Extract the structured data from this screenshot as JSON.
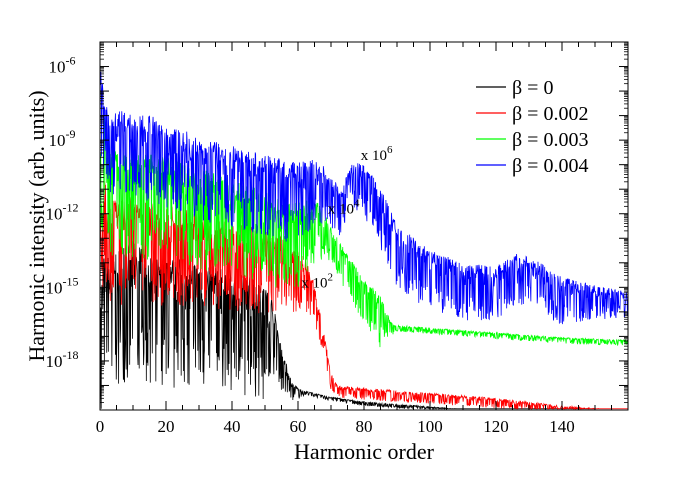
{
  "chart_data": {
    "type": "line",
    "xlabel": "Harmonic order",
    "ylabel": "Harmonic intensity (arb. units)",
    "xlim": [
      0,
      160
    ],
    "ylim": [
      1e-20,
      1e-05
    ],
    "yscale": "log",
    "xticks": [
      0,
      20,
      40,
      60,
      80,
      100,
      120,
      140
    ],
    "yticks": [
      {
        "value": 1e-18,
        "base": "10",
        "exp": "-18"
      },
      {
        "value": 1e-15,
        "base": "10",
        "exp": "-15"
      },
      {
        "value": 1e-12,
        "base": "10",
        "exp": "-12"
      },
      {
        "value": 1e-09,
        "base": "10",
        "exp": "-9"
      },
      {
        "value": 1e-06,
        "base": "10",
        "exp": "-6"
      }
    ],
    "legend_position": "top-right",
    "series": [
      {
        "name": "β = 0",
        "color": "#000000",
        "baseline": [
          [
            0,
            -17.0
          ],
          [
            1,
            -14.8
          ],
          [
            3,
            -14.9
          ],
          [
            6,
            -14.6
          ],
          [
            10,
            -14.3
          ],
          [
            15,
            -14.7
          ],
          [
            20,
            -14.9
          ],
          [
            30,
            -15.1
          ],
          [
            40,
            -15.4
          ],
          [
            48,
            -15.6
          ],
          [
            52,
            -16.2
          ],
          [
            54,
            -17.2
          ],
          [
            56,
            -18.2
          ],
          [
            58,
            -19.0
          ],
          [
            60,
            -19.2
          ],
          [
            70,
            -19.5
          ],
          [
            80,
            -19.7
          ],
          [
            100,
            -19.9
          ],
          [
            120,
            -20.1
          ],
          [
            150,
            -20.4
          ]
        ],
        "noise": [
          [
            0,
            3.5
          ],
          [
            50,
            3.0
          ],
          [
            54,
            1.5
          ],
          [
            58,
            0.5
          ],
          [
            62,
            0.1
          ],
          [
            150,
            0.1
          ]
        ]
      },
      {
        "name": "β = 0.002",
        "color": "#ff0000",
        "baseline": [
          [
            0,
            -13.2
          ],
          [
            1,
            -11.4
          ],
          [
            3,
            -12.1
          ],
          [
            6,
            -12.3
          ],
          [
            10,
            -12.2
          ],
          [
            20,
            -12.5
          ],
          [
            30,
            -12.8
          ],
          [
            40,
            -13.1
          ],
          [
            50,
            -13.4
          ],
          [
            55,
            -13.6
          ],
          [
            58,
            -13.9
          ],
          [
            60,
            -14.0
          ],
          [
            62,
            -14.2
          ],
          [
            65,
            -15.2
          ],
          [
            68,
            -17.2
          ],
          [
            70,
            -18.6
          ],
          [
            72,
            -19.1
          ],
          [
            80,
            -19.2
          ],
          [
            100,
            -19.4
          ],
          [
            120,
            -19.6
          ],
          [
            140,
            -19.9
          ],
          [
            160,
            -20.1
          ]
        ],
        "noise": [
          [
            0,
            2.8
          ],
          [
            55,
            2.0
          ],
          [
            63,
            1.2
          ],
          [
            68,
            0.6
          ],
          [
            72,
            0.3
          ],
          [
            160,
            0.2
          ]
        ]
      },
      {
        "name": "β = 0.003",
        "color": "#00ff00",
        "baseline": [
          [
            0,
            -10.8
          ],
          [
            1,
            -8.5
          ],
          [
            2,
            -10.0
          ],
          [
            5,
            -10.4
          ],
          [
            10,
            -10.3
          ],
          [
            20,
            -10.6
          ],
          [
            30,
            -11.0
          ],
          [
            40,
            -11.4
          ],
          [
            50,
            -11.9
          ],
          [
            55,
            -12.2
          ],
          [
            58,
            -12.4
          ],
          [
            62,
            -12.0
          ],
          [
            66,
            -12.0
          ],
          [
            70,
            -12.8
          ],
          [
            75,
            -14.0
          ],
          [
            80,
            -15.0
          ],
          [
            85,
            -15.8
          ],
          [
            88,
            -16.5
          ],
          [
            90,
            -16.6
          ],
          [
            100,
            -16.7
          ],
          [
            120,
            -16.9
          ],
          [
            140,
            -17.1
          ],
          [
            160,
            -17.2
          ]
        ],
        "noise": [
          [
            0,
            2.8
          ],
          [
            60,
            2.2
          ],
          [
            70,
            0.9
          ],
          [
            85,
            1.3
          ],
          [
            88,
            0.4
          ],
          [
            90,
            0.15
          ],
          [
            160,
            0.15
          ]
        ]
      },
      {
        "name": "β = 0.004",
        "color": "#0000ff",
        "baseline": [
          [
            0,
            -6.2
          ],
          [
            1,
            -7.8
          ],
          [
            3,
            -8.7
          ],
          [
            8,
            -8.5
          ],
          [
            15,
            -8.7
          ],
          [
            25,
            -9.3
          ],
          [
            35,
            -9.8
          ],
          [
            45,
            -10.1
          ],
          [
            55,
            -10.5
          ],
          [
            60,
            -10.6
          ],
          [
            65,
            -10.3
          ],
          [
            70,
            -10.8
          ],
          [
            73,
            -11.5
          ],
          [
            76,
            -10.3
          ],
          [
            80,
            -10.4
          ],
          [
            85,
            -11.5
          ],
          [
            90,
            -13.0
          ],
          [
            100,
            -14.0
          ],
          [
            110,
            -14.5
          ],
          [
            120,
            -14.6
          ],
          [
            127,
            -14.0
          ],
          [
            133,
            -14.4
          ],
          [
            140,
            -15.0
          ],
          [
            160,
            -15.4
          ]
        ],
        "noise": [
          [
            0,
            2.2
          ],
          [
            60,
            2.0
          ],
          [
            75,
            1.0
          ],
          [
            85,
            1.6
          ],
          [
            100,
            1.5
          ],
          [
            140,
            1.2
          ],
          [
            160,
            0.6
          ]
        ]
      }
    ],
    "annotations": [
      {
        "text": "x 10",
        "sup": "2",
        "x": 61,
        "y": -15.0
      },
      {
        "text": "x 10",
        "sup": "4",
        "x": 69,
        "y": -12.0
      },
      {
        "text": "x 10",
        "sup": "6",
        "x": 79,
        "y": -9.8
      }
    ]
  }
}
